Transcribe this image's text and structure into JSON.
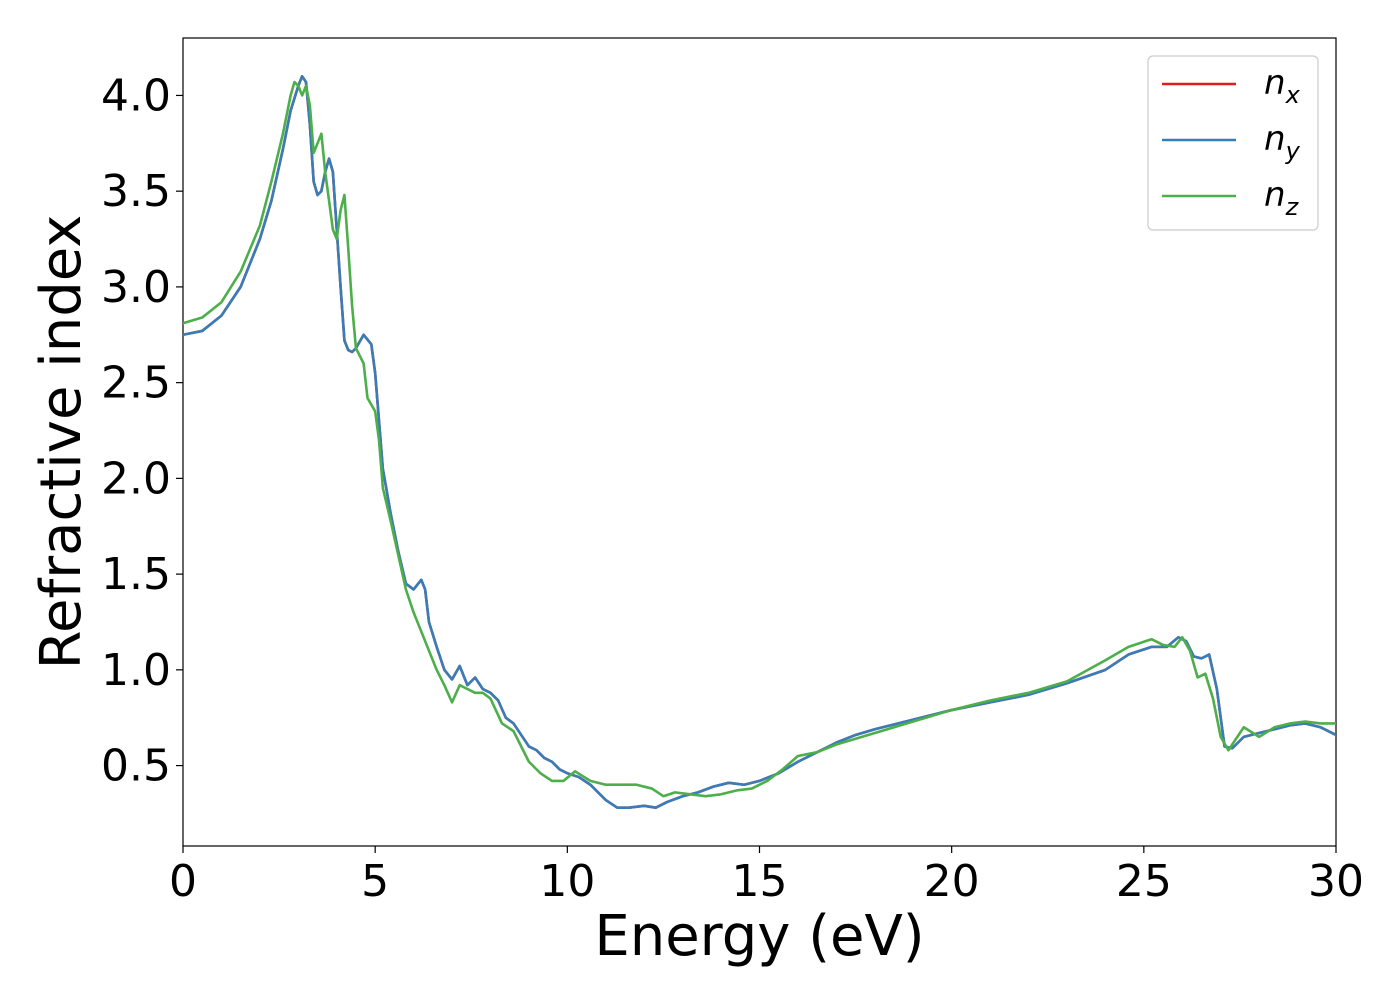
{
  "chart_data": {
    "type": "line",
    "xlabel": "Energy (eV)",
    "ylabel": "Refractive index",
    "xlim": [
      0,
      30
    ],
    "ylim": [
      0.08,
      4.3
    ],
    "xticks": [
      0,
      5,
      10,
      15,
      20,
      25,
      30
    ],
    "xtick_labels": [
      "0",
      "5",
      "10",
      "15",
      "20",
      "25",
      "30"
    ],
    "yticks": [
      0.5,
      1.0,
      1.5,
      2.0,
      2.5,
      3.0,
      3.5,
      4.0
    ],
    "ytick_labels": [
      "0.5",
      "1.0",
      "1.5",
      "2.0",
      "2.5",
      "3.0",
      "3.5",
      "4.0"
    ],
    "grid": false,
    "legend_position": "top-right",
    "series": [
      {
        "name": "n_x",
        "label_base": "n",
        "label_sub": "x",
        "color": "#e41a1c",
        "x": [
          0,
          0.5,
          1,
          1.5,
          2,
          2.3,
          2.6,
          2.8,
          3.0,
          3.1,
          3.2,
          3.3,
          3.4,
          3.5,
          3.6,
          3.7,
          3.8,
          3.9,
          4.0,
          4.1,
          4.2,
          4.3,
          4.4,
          4.5,
          4.7,
          4.9,
          5.0,
          5.1,
          5.2,
          5.4,
          5.6,
          5.8,
          6.0,
          6.2,
          6.3,
          6.4,
          6.6,
          6.8,
          7.0,
          7.2,
          7.4,
          7.6,
          7.8,
          8.0,
          8.2,
          8.4,
          8.6,
          8.8,
          9.0,
          9.2,
          9.4,
          9.6,
          9.8,
          10.0,
          10.3,
          10.6,
          11.0,
          11.3,
          11.6,
          12.0,
          12.3,
          12.6,
          13.0,
          13.4,
          13.8,
          14.2,
          14.6,
          15.0,
          15.5,
          16.0,
          16.5,
          17.0,
          17.5,
          18.0,
          19.0,
          20.0,
          21.0,
          22.0,
          23.0,
          24.0,
          24.6,
          25.2,
          25.6,
          25.9,
          26.1,
          26.3,
          26.5,
          26.7,
          26.9,
          27.1,
          27.3,
          27.6,
          28.0,
          28.4,
          28.8,
          29.2,
          29.6,
          30.0
        ],
        "values": [
          2.75,
          2.77,
          2.85,
          3.0,
          3.25,
          3.45,
          3.72,
          3.92,
          4.05,
          4.1,
          4.07,
          3.85,
          3.55,
          3.48,
          3.5,
          3.6,
          3.67,
          3.6,
          3.3,
          3.0,
          2.72,
          2.67,
          2.66,
          2.68,
          2.75,
          2.7,
          2.55,
          2.3,
          2.05,
          1.82,
          1.62,
          1.45,
          1.42,
          1.47,
          1.42,
          1.25,
          1.12,
          1.0,
          0.95,
          1.02,
          0.92,
          0.96,
          0.9,
          0.88,
          0.84,
          0.75,
          0.72,
          0.66,
          0.6,
          0.58,
          0.54,
          0.52,
          0.48,
          0.46,
          0.44,
          0.4,
          0.32,
          0.28,
          0.28,
          0.29,
          0.28,
          0.31,
          0.34,
          0.36,
          0.39,
          0.41,
          0.4,
          0.42,
          0.46,
          0.52,
          0.57,
          0.62,
          0.66,
          0.69,
          0.74,
          0.79,
          0.83,
          0.87,
          0.93,
          1.0,
          1.08,
          1.12,
          1.12,
          1.17,
          1.15,
          1.07,
          1.06,
          1.08,
          0.9,
          0.6,
          0.59,
          0.65,
          0.67,
          0.69,
          0.71,
          0.72,
          0.7,
          0.66
        ]
      },
      {
        "name": "n_y",
        "label_base": "n",
        "label_sub": "y",
        "color": "#377eb8",
        "x": [
          0,
          0.5,
          1,
          1.5,
          2,
          2.3,
          2.6,
          2.8,
          3.0,
          3.1,
          3.2,
          3.3,
          3.4,
          3.5,
          3.6,
          3.7,
          3.8,
          3.9,
          4.0,
          4.1,
          4.2,
          4.3,
          4.4,
          4.5,
          4.7,
          4.9,
          5.0,
          5.1,
          5.2,
          5.4,
          5.6,
          5.8,
          6.0,
          6.2,
          6.3,
          6.4,
          6.6,
          6.8,
          7.0,
          7.2,
          7.4,
          7.6,
          7.8,
          8.0,
          8.2,
          8.4,
          8.6,
          8.8,
          9.0,
          9.2,
          9.4,
          9.6,
          9.8,
          10.0,
          10.3,
          10.6,
          11.0,
          11.3,
          11.6,
          12.0,
          12.3,
          12.6,
          13.0,
          13.4,
          13.8,
          14.2,
          14.6,
          15.0,
          15.5,
          16.0,
          16.5,
          17.0,
          17.5,
          18.0,
          19.0,
          20.0,
          21.0,
          22.0,
          23.0,
          24.0,
          24.6,
          25.2,
          25.6,
          25.9,
          26.1,
          26.3,
          26.5,
          26.7,
          26.9,
          27.1,
          27.3,
          27.6,
          28.0,
          28.4,
          28.8,
          29.2,
          29.6,
          30.0
        ],
        "values": [
          2.75,
          2.77,
          2.85,
          3.0,
          3.25,
          3.45,
          3.72,
          3.92,
          4.05,
          4.1,
          4.07,
          3.85,
          3.55,
          3.48,
          3.5,
          3.6,
          3.67,
          3.6,
          3.3,
          3.0,
          2.72,
          2.67,
          2.66,
          2.68,
          2.75,
          2.7,
          2.55,
          2.3,
          2.05,
          1.82,
          1.62,
          1.45,
          1.42,
          1.47,
          1.42,
          1.25,
          1.12,
          1.0,
          0.95,
          1.02,
          0.92,
          0.96,
          0.9,
          0.88,
          0.84,
          0.75,
          0.72,
          0.66,
          0.6,
          0.58,
          0.54,
          0.52,
          0.48,
          0.46,
          0.44,
          0.4,
          0.32,
          0.28,
          0.28,
          0.29,
          0.28,
          0.31,
          0.34,
          0.36,
          0.39,
          0.41,
          0.4,
          0.42,
          0.46,
          0.52,
          0.57,
          0.62,
          0.66,
          0.69,
          0.74,
          0.79,
          0.83,
          0.87,
          0.93,
          1.0,
          1.08,
          1.12,
          1.12,
          1.17,
          1.15,
          1.07,
          1.06,
          1.08,
          0.9,
          0.6,
          0.59,
          0.65,
          0.67,
          0.69,
          0.71,
          0.72,
          0.7,
          0.66
        ]
      },
      {
        "name": "n_z",
        "label_base": "n",
        "label_sub": "z",
        "color": "#4daf4a",
        "x": [
          0,
          0.5,
          1,
          1.5,
          2,
          2.3,
          2.6,
          2.8,
          2.9,
          3.0,
          3.1,
          3.2,
          3.3,
          3.4,
          3.5,
          3.6,
          3.7,
          3.8,
          3.9,
          4.0,
          4.1,
          4.2,
          4.3,
          4.4,
          4.5,
          4.7,
          4.8,
          5.0,
          5.1,
          5.2,
          5.4,
          5.6,
          5.8,
          6.0,
          6.2,
          6.4,
          6.6,
          6.8,
          7.0,
          7.2,
          7.4,
          7.6,
          7.8,
          8.0,
          8.3,
          8.6,
          9.0,
          9.3,
          9.6,
          9.9,
          10.2,
          10.6,
          11.0,
          11.4,
          11.8,
          12.2,
          12.5,
          12.8,
          13.2,
          13.6,
          14.0,
          14.4,
          14.8,
          15.2,
          15.6,
          16.0,
          16.5,
          17.0,
          17.5,
          18.0,
          19.0,
          20.0,
          21.0,
          22.0,
          23.0,
          24.0,
          24.6,
          25.2,
          25.5,
          25.8,
          26.0,
          26.2,
          26.4,
          26.6,
          26.8,
          27.0,
          27.2,
          27.6,
          28.0,
          28.4,
          28.8,
          29.2,
          29.6,
          30.0
        ],
        "values": [
          2.81,
          2.84,
          2.92,
          3.08,
          3.32,
          3.55,
          3.8,
          4.0,
          4.07,
          4.05,
          4.0,
          4.05,
          3.95,
          3.7,
          3.75,
          3.8,
          3.6,
          3.45,
          3.3,
          3.25,
          3.4,
          3.48,
          3.2,
          2.9,
          2.68,
          2.6,
          2.42,
          2.35,
          2.2,
          1.95,
          1.78,
          1.6,
          1.42,
          1.3,
          1.2,
          1.1,
          1.0,
          0.92,
          0.83,
          0.92,
          0.9,
          0.88,
          0.88,
          0.85,
          0.72,
          0.68,
          0.52,
          0.46,
          0.42,
          0.42,
          0.47,
          0.42,
          0.4,
          0.4,
          0.4,
          0.38,
          0.34,
          0.36,
          0.35,
          0.34,
          0.35,
          0.37,
          0.38,
          0.42,
          0.48,
          0.55,
          0.57,
          0.61,
          0.64,
          0.67,
          0.73,
          0.79,
          0.84,
          0.88,
          0.94,
          1.05,
          1.12,
          1.16,
          1.13,
          1.12,
          1.17,
          1.1,
          0.96,
          0.98,
          0.85,
          0.65,
          0.58,
          0.7,
          0.65,
          0.7,
          0.72,
          0.73,
          0.72,
          0.72
        ]
      }
    ]
  }
}
